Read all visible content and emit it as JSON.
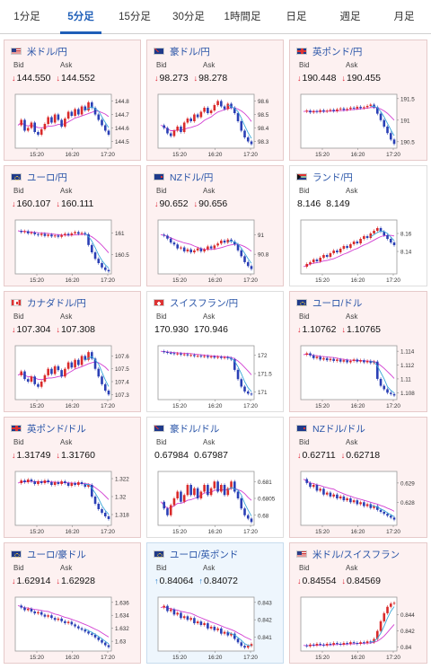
{
  "tabs": [
    {
      "label": "1分足",
      "active": false
    },
    {
      "label": "5分足",
      "active": true
    },
    {
      "label": "15分足",
      "active": false
    },
    {
      "label": "30分足",
      "active": false
    },
    {
      "label": "1時間足",
      "active": false
    },
    {
      "label": "日足",
      "active": false
    },
    {
      "label": "週足",
      "active": false
    },
    {
      "label": "月足",
      "active": false
    }
  ],
  "colors": {
    "tab_active": "#1f5fb8",
    "card_down_bg": "#fdf1f1",
    "card_up_bg": "#eef6fd",
    "candle_up": "#d92a2a",
    "candle_down": "#2a3fb5",
    "moving_average": "#d23fd2",
    "short_average": "#3aa7d8",
    "arrow_down": "#d22233",
    "arrow_up": "#1a77cc"
  },
  "bid_label": "Bid",
  "ask_label": "Ask",
  "cards": [
    {
      "name": "米ドル/円",
      "flags": [
        "us",
        "jp"
      ],
      "direction": "down",
      "bid": "144.550",
      "ask": "144.552",
      "y_ticks": [
        "144.8",
        "144.7",
        "144.6",
        "144.5"
      ],
      "ylim": [
        144.45,
        144.85
      ],
      "x_ticks": [
        "15:20",
        "16:20",
        "17:20"
      ],
      "series": [
        144.62,
        144.66,
        144.58,
        144.6,
        144.64,
        144.57,
        144.55,
        144.59,
        144.63,
        144.68,
        144.64,
        144.7,
        144.66,
        144.61,
        144.67,
        144.72,
        144.69,
        144.74,
        144.7,
        144.76,
        144.73,
        144.79,
        144.75,
        144.7,
        144.66,
        144.62,
        144.58,
        144.55
      ]
    },
    {
      "name": "豪ドル/円",
      "flags": [
        "au",
        "jp"
      ],
      "direction": "down",
      "bid": "98.273",
      "ask": "98.278",
      "y_ticks": [
        "98.6",
        "98.5",
        "98.4",
        "98.3"
      ],
      "ylim": [
        98.25,
        98.65
      ],
      "x_ticks": [
        "15:20",
        "16:20",
        "17:20"
      ],
      "series": [
        98.42,
        98.4,
        98.36,
        98.34,
        98.38,
        98.41,
        98.37,
        98.44,
        98.47,
        98.45,
        98.5,
        98.48,
        98.52,
        98.55,
        98.51,
        98.53,
        98.57,
        98.6,
        98.56,
        98.54,
        98.58,
        98.55,
        98.51,
        98.45,
        98.38,
        98.33,
        98.3,
        98.28
      ]
    },
    {
      "name": "英ポンド/円",
      "flags": [
        "gb",
        "jp"
      ],
      "direction": "down",
      "bid": "190.448",
      "ask": "190.455",
      "y_ticks": [
        "191.5",
        "191",
        "190.5"
      ],
      "ylim": [
        190.35,
        191.6
      ],
      "x_ticks": [
        "15:20",
        "16:20",
        "17:20"
      ],
      "series": [
        191.2,
        191.22,
        191.18,
        191.21,
        191.19,
        191.23,
        191.2,
        191.22,
        191.24,
        191.21,
        191.25,
        191.27,
        191.24,
        191.26,
        191.29,
        191.27,
        191.31,
        191.28,
        191.3,
        191.33,
        191.36,
        191.3,
        191.15,
        191.0,
        190.85,
        190.7,
        190.55,
        190.45
      ]
    },
    {
      "name": "ユーロ/円",
      "flags": [
        "eu",
        "jp"
      ],
      "direction": "down",
      "bid": "160.107",
      "ask": "160.111",
      "y_ticks": [
        "161",
        "160.5"
      ],
      "ylim": [
        160.05,
        161.3
      ],
      "x_ticks": [
        "15:20",
        "16:20",
        "17:20"
      ],
      "series": [
        161.05,
        161.02,
        161.04,
        160.99,
        161.01,
        160.97,
        160.95,
        160.98,
        160.93,
        160.96,
        160.92,
        160.94,
        160.91,
        160.95,
        160.98,
        160.95,
        160.99,
        161.02,
        160.98,
        161.0,
        160.97,
        160.72,
        160.55,
        160.4,
        160.3,
        160.2,
        160.14,
        160.11
      ]
    },
    {
      "name": "NZドル/円",
      "flags": [
        "nz",
        "jp"
      ],
      "direction": "down",
      "bid": "90.652",
      "ask": "90.656",
      "y_ticks": [
        "91",
        "90.8"
      ],
      "ylim": [
        90.6,
        91.15
      ],
      "x_ticks": [
        "15:20",
        "16:20",
        "17:20"
      ],
      "series": [
        91.0,
        90.99,
        90.96,
        90.92,
        90.9,
        90.86,
        90.87,
        90.83,
        90.85,
        90.82,
        90.84,
        90.86,
        90.83,
        90.85,
        90.88,
        90.86,
        90.89,
        90.91,
        90.94,
        90.92,
        90.95,
        90.93,
        90.9,
        90.84,
        90.78,
        90.72,
        90.68,
        90.65
      ]
    },
    {
      "name": "ランド/円",
      "flags": [
        "za",
        "jp"
      ],
      "direction": "none",
      "bid": "8.146",
      "ask": "8.149",
      "y_ticks": [
        "8.16",
        "8.14"
      ],
      "ylim": [
        8.115,
        8.175
      ],
      "x_ticks": [
        "15:20",
        "16:20",
        "17:20"
      ],
      "series": [
        8.123,
        8.126,
        8.128,
        8.131,
        8.129,
        8.133,
        8.136,
        8.134,
        8.138,
        8.141,
        8.139,
        8.143,
        8.146,
        8.144,
        8.148,
        8.151,
        8.149,
        8.154,
        8.157,
        8.155,
        8.16,
        8.163,
        8.166,
        8.162,
        8.158,
        8.154,
        8.15,
        8.147
      ]
    },
    {
      "name": "カナダドル/円",
      "flags": [
        "ca",
        "jp"
      ],
      "direction": "down",
      "bid": "107.304",
      "ask": "107.308",
      "y_ticks": [
        "107.6",
        "107.5",
        "107.4",
        "107.3"
      ],
      "ylim": [
        107.26,
        107.68
      ],
      "x_ticks": [
        "15:20",
        "16:20",
        "17:20"
      ],
      "series": [
        107.45,
        107.48,
        107.42,
        107.4,
        107.44,
        107.38,
        107.36,
        107.4,
        107.45,
        107.5,
        107.46,
        107.52,
        107.49,
        107.44,
        107.5,
        107.55,
        107.51,
        107.57,
        107.53,
        107.6,
        107.57,
        107.63,
        107.58,
        107.5,
        107.44,
        107.38,
        107.33,
        107.3
      ]
    },
    {
      "name": "スイスフラン/円",
      "flags": [
        "ch",
        "jp"
      ],
      "direction": "none",
      "bid": "170.930",
      "ask": "170.946",
      "y_ticks": [
        "172",
        "171.5",
        "171"
      ],
      "ylim": [
        170.8,
        172.25
      ],
      "x_ticks": [
        "15:20",
        "16:20",
        "17:20"
      ],
      "series": [
        172.1,
        172.08,
        172.06,
        172.05,
        172.03,
        172.04,
        172.01,
        172.02,
        171.99,
        172.0,
        171.97,
        171.98,
        171.96,
        171.97,
        171.94,
        171.96,
        171.93,
        171.95,
        171.92,
        171.94,
        171.91,
        171.88,
        171.6,
        171.35,
        171.15,
        171.02,
        170.96,
        170.94
      ]
    },
    {
      "name": "ユーロ/ドル",
      "flags": [
        "eu",
        "us"
      ],
      "direction": "down",
      "bid": "1.10762",
      "ask": "1.10765",
      "y_ticks": [
        "1.114",
        "1.112",
        "1.11",
        "1.108"
      ],
      "ylim": [
        1.107,
        1.1148
      ],
      "x_ticks": [
        "15:20",
        "16:20",
        "17:20"
      ],
      "series": [
        1.1135,
        1.1137,
        1.1134,
        1.113,
        1.1132,
        1.1128,
        1.113,
        1.1127,
        1.1129,
        1.1126,
        1.1128,
        1.1125,
        1.1127,
        1.1124,
        1.1126,
        1.1128,
        1.1125,
        1.1127,
        1.1124,
        1.1126,
        1.1123,
        1.1125,
        1.11,
        1.109,
        1.1085,
        1.108,
        1.1078,
        1.1076
      ]
    },
    {
      "name": "英ポンド/ドル",
      "flags": [
        "gb",
        "us"
      ],
      "direction": "down",
      "bid": "1.31749",
      "ask": "1.31760",
      "y_ticks": [
        "1.322",
        "1.32",
        "1.318"
      ],
      "ylim": [
        1.3168,
        1.3228
      ],
      "x_ticks": [
        "15:20",
        "16:20",
        "17:20"
      ],
      "series": [
        1.3215,
        1.3218,
        1.3216,
        1.3219,
        1.3217,
        1.3214,
        1.3217,
        1.3215,
        1.3218,
        1.3216,
        1.3213,
        1.3216,
        1.3214,
        1.3217,
        1.3215,
        1.3212,
        1.3215,
        1.3213,
        1.3216,
        1.3214,
        1.3211,
        1.3213,
        1.32,
        1.3192,
        1.3186,
        1.3182,
        1.3178,
        1.3175
      ]
    },
    {
      "name": "豪ドル/ドル",
      "flags": [
        "au",
        "us"
      ],
      "direction": "none",
      "bid": "0.67984",
      "ask": "0.67987",
      "y_ticks": [
        "0.681",
        "0.6805",
        "0.68"
      ],
      "ylim": [
        0.6797,
        0.6813
      ],
      "x_ticks": [
        "15:20",
        "16:20",
        "17:20"
      ],
      "series": [
        0.6804,
        0.6802,
        0.68,
        0.6803,
        0.6805,
        0.6807,
        0.6804,
        0.6806,
        0.6809,
        0.6806,
        0.6808,
        0.6805,
        0.6807,
        0.6809,
        0.6806,
        0.6808,
        0.681,
        0.6807,
        0.6809,
        0.6806,
        0.6808,
        0.681,
        0.6807,
        0.6805,
        0.6802,
        0.68,
        0.6799,
        0.6798
      ]
    },
    {
      "name": "NZドル/ドル",
      "flags": [
        "nz",
        "us"
      ],
      "direction": "down",
      "bid": "0.62711",
      "ask": "0.62718",
      "y_ticks": [
        "0.629",
        "0.628"
      ],
      "ylim": [
        0.6268,
        0.6296
      ],
      "x_ticks": [
        "15:20",
        "16:20",
        "17:20"
      ],
      "series": [
        0.6292,
        0.629,
        0.6288,
        0.6289,
        0.6286,
        0.6287,
        0.6284,
        0.6285,
        0.6283,
        0.6284,
        0.6282,
        0.6283,
        0.6281,
        0.6282,
        0.628,
        0.6281,
        0.6279,
        0.628,
        0.6278,
        0.6279,
        0.6277,
        0.6278,
        0.6276,
        0.6275,
        0.6274,
        0.6273,
        0.6272,
        0.6271
      ]
    },
    {
      "name": "ユーロ/豪ドル",
      "flags": [
        "eu",
        "au"
      ],
      "direction": "down",
      "bid": "1.62914",
      "ask": "1.62928",
      "y_ticks": [
        "1.636",
        "1.634",
        "1.632",
        "1.63"
      ],
      "ylim": [
        1.6285,
        1.6368
      ],
      "x_ticks": [
        "15:20",
        "16:20",
        "17:20"
      ],
      "series": [
        1.6355,
        1.6352,
        1.6348,
        1.635,
        1.6346,
        1.6343,
        1.6345,
        1.6341,
        1.6338,
        1.634,
        1.6336,
        1.6333,
        1.6335,
        1.6331,
        1.6328,
        1.633,
        1.6326,
        1.6323,
        1.632,
        1.6318,
        1.6315,
        1.6312,
        1.631,
        1.6306,
        1.6302,
        1.6298,
        1.6294,
        1.6291
      ]
    },
    {
      "name": "ユーロ/英ポンド",
      "flags": [
        "eu",
        "gb"
      ],
      "direction": "up",
      "bid": "0.84064",
      "ask": "0.84072",
      "y_ticks": [
        "0.843",
        "0.842",
        "0.841"
      ],
      "ylim": [
        0.8402,
        0.8433
      ],
      "x_ticks": [
        "15:20",
        "16:20",
        "17:20"
      ],
      "series": [
        0.8427,
        0.8428,
        0.8425,
        0.8426,
        0.8423,
        0.8424,
        0.8421,
        0.8422,
        0.842,
        0.8421,
        0.8418,
        0.8419,
        0.8417,
        0.8418,
        0.8415,
        0.8416,
        0.8414,
        0.8415,
        0.8412,
        0.8413,
        0.8411,
        0.8412,
        0.8409,
        0.8407,
        0.8405,
        0.8404,
        0.8405,
        0.8406
      ]
    },
    {
      "name": "米ドル/スイスフラン",
      "flags": [
        "us",
        "ch"
      ],
      "direction": "down",
      "bid": "0.84554",
      "ask": "0.84569",
      "y_ticks": [
        "0.844",
        "0.842",
        "0.84"
      ],
      "ylim": [
        0.8395,
        0.8462
      ],
      "x_ticks": [
        "15:20",
        "16:20",
        "17:20"
      ],
      "series": [
        0.8402,
        0.8401,
        0.8403,
        0.8402,
        0.8404,
        0.8403,
        0.8402,
        0.8404,
        0.8403,
        0.8405,
        0.8404,
        0.8403,
        0.8405,
        0.8404,
        0.8406,
        0.8405,
        0.8404,
        0.8406,
        0.8405,
        0.8407,
        0.8406,
        0.841,
        0.842,
        0.8432,
        0.8442,
        0.845,
        0.8454,
        0.8455
      ]
    }
  ]
}
